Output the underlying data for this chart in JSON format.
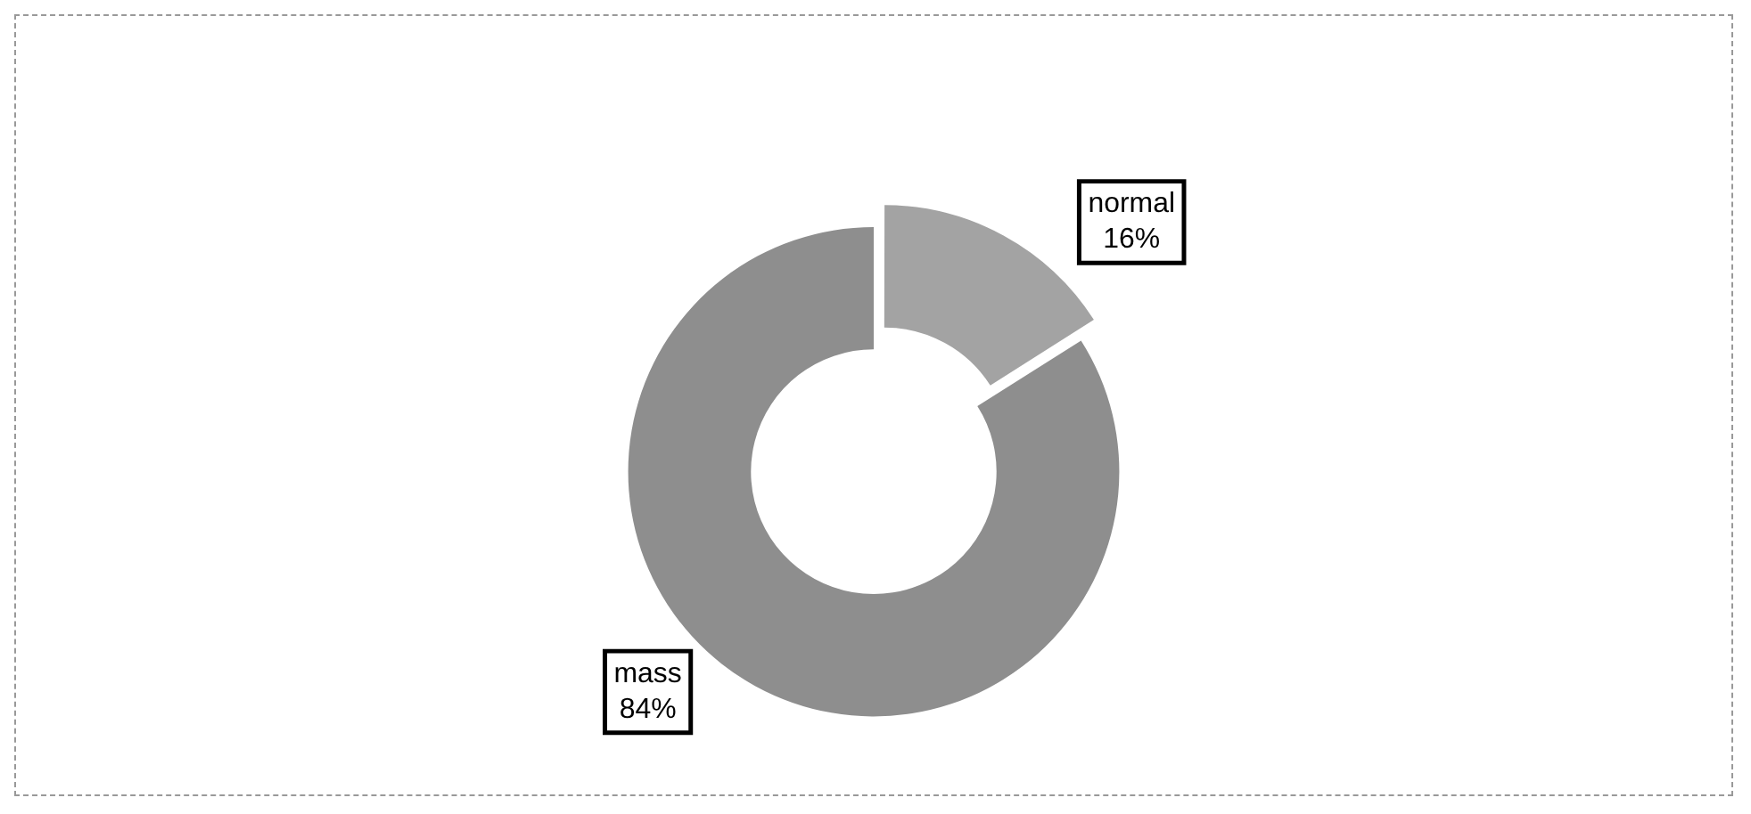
{
  "chart_data": {
    "type": "donut",
    "categories": [
      "normal",
      "mass"
    ],
    "values": [
      16,
      84
    ],
    "colors": [
      "#a3a3a3",
      "#8e8e8e"
    ],
    "value_labels": [
      "16%",
      "84%"
    ],
    "legend": false
  }
}
